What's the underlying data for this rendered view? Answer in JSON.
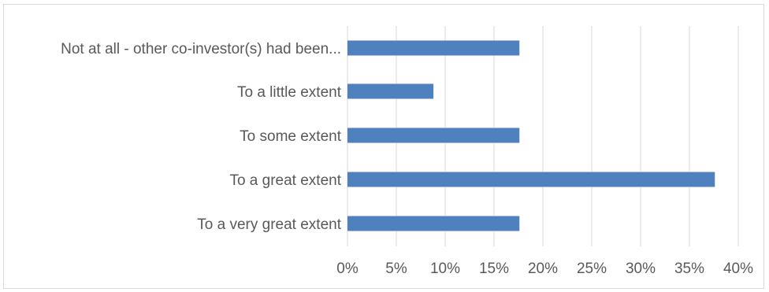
{
  "chart_data": {
    "type": "bar",
    "orientation": "horizontal",
    "title": "",
    "xlabel": "",
    "ylabel": "",
    "categories": [
      "Not at all - other co-investor(s) had been...",
      "To a little extent",
      "To some extent",
      "To a great extent",
      "To a very great extent"
    ],
    "values": [
      17.6,
      8.8,
      17.6,
      37.6,
      17.6
    ],
    "value_unit": "%",
    "xlim": [
      0,
      40
    ],
    "ticks": [
      "0%",
      "5%",
      "10%",
      "15%",
      "20%",
      "25%",
      "30%",
      "35%",
      "40%"
    ],
    "grid": "vertical",
    "legend": "none",
    "colors": {
      "bar": "#4e81bd",
      "grid": "#d9d9d9",
      "text": "#595959"
    }
  }
}
